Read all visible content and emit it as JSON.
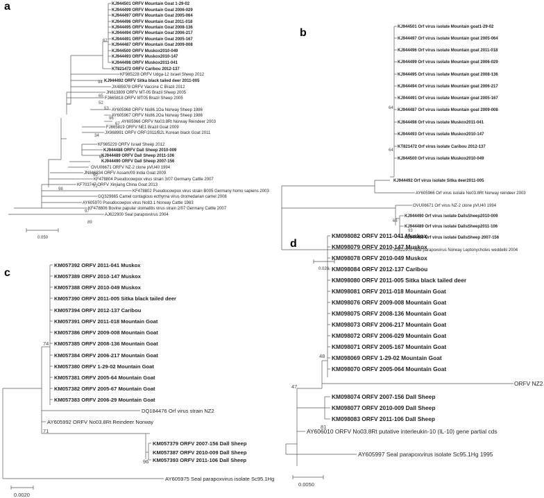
{
  "panels": [
    {
      "letter": "a",
      "scale_label": "0.050",
      "bootstrap": [
        "62",
        "94",
        "65",
        "52",
        "53",
        "96",
        "67",
        "34",
        "67",
        "50",
        "72",
        "98",
        "97",
        "89"
      ],
      "leaves": [
        {
          "text": "KJ944501 ORFV Mountain Goat 1-29-02",
          "bold": true
        },
        {
          "text": "KJ944499 ORFV Mountain Goat 2006-029",
          "bold": true
        },
        {
          "text": "KJ944497 ORFV Mountain Goat 2005-064",
          "bold": true
        },
        {
          "text": "KJ944496 ORFV Mountain Goat 2011-018",
          "bold": true
        },
        {
          "text": "KJ944495 ORFV Mountain Goat 2008-136",
          "bold": true
        },
        {
          "text": "KJ944494 ORFV Mountain Goat 2006-217",
          "bold": true
        },
        {
          "text": "KJ944491 ORFV Mountain Goat 2005-167",
          "bold": true
        },
        {
          "text": "KJ944487 ORFV Mountain Goat 2009-008",
          "bold": true
        },
        {
          "text": "KJ944500 ORFV Muskox2010-049",
          "bold": true
        },
        {
          "text": "KJ944493 ORFV Muskox2010-147",
          "bold": true
        },
        {
          "text": "KJ944498 ORFV Muskox2011-041",
          "bold": true
        },
        {
          "text": "KT821472 ORFV Caribou 2012-137",
          "bold": true
        },
        {
          "text": "KF985228 ORFV Udga-12 Israel Sheep 2012",
          "bold": false
        },
        {
          "text": "KJ944492 ORFV Sitka black tailed deer 2011-005",
          "bold": true
        },
        {
          "text": "JX485978 ORFV Vaccine C Brazil 2012",
          "bold": false
        },
        {
          "text": "JN613809 ORFV MT-05 Brazil Sheep 2005",
          "bold": false
        },
        {
          "text": "FJ665818 ORFV MT05 Brazil Sheep 2005",
          "bold": false
        },
        {
          "text": "AY605968 ORFV No86.1Oa Norway Sheep 1986",
          "bold": false
        },
        {
          "text": "AY605967 ORFV No86.2Oa Norway Sheep 1986",
          "bold": false
        },
        {
          "text": "AY605966 ORFV No03.8Rt Norway Reindeer 2003",
          "bold": false
        },
        {
          "text": "FJ665819 ORFV NE1 Brazil Goat 2009",
          "bold": false
        },
        {
          "text": "JX968991 ORFV ORF/2011/B2L Korean black Goat 2011",
          "bold": false
        },
        {
          "text": "KF985229 ORFV Israel Sheep 2012",
          "bold": false
        },
        {
          "text": "KJ944488 ORFV Dall Sheep 2010-009",
          "bold": true
        },
        {
          "text": "KJ944489 ORFV Dall Sheep 2011-106",
          "bold": true
        },
        {
          "text": "KJ944490 ORFV Dall Sheep  2007-156",
          "bold": true
        },
        {
          "text": "OVU06671 ORFV NZ-2 clone pVU40 1994",
          "bold": false
        },
        {
          "text": "JN846834 ORFV Assam/09 India Goat 2009",
          "bold": false
        },
        {
          "text": "KF703747 ORFV Xinjiang China Goat 2013",
          "bold": false
        },
        {
          "text": "KF478804 Pseudocowpox virus strain 3/07 Germany Cattle 2007",
          "bold": false
        },
        {
          "text": "GQ329665 Camel contagious ecthyma virus dromedarian camel 2008",
          "bold": false
        },
        {
          "text": "KF478802 Pseudocowpox virus strain B005 Germany homo sapiens 2003",
          "bold": false
        },
        {
          "text": "AY605970 Pseudocowpox virus  No83.1 Norway Cattle 1983",
          "bold": false
        },
        {
          "text": "KF478806 Bovine papular stomatitis virus strain 2/07 Germany Cattle 2007",
          "bold": false
        },
        {
          "text": "AJ622900 Seal parapoxvirus 2004",
          "bold": false
        }
      ]
    },
    {
      "letter": "b",
      "scale_label": "0.020",
      "bootstrap": [
        "64",
        "64",
        "66",
        "93"
      ],
      "leaves": [
        {
          "text": "KJ944501 Orf virus isolate Mountain goat1-29-02",
          "bold": true
        },
        {
          "text": "KJ944497 Orf virus isolate Mountain goat 2005-064",
          "bold": true
        },
        {
          "text": "KJ944496 Orf virus isolate Mountain goat 2011-018",
          "bold": true
        },
        {
          "text": "KJ944499 Orf virus isolate Mountain goat 2006-029",
          "bold": true
        },
        {
          "text": "KJ944495 Orf virus isolate Mountain goat 2008-136",
          "bold": true
        },
        {
          "text": "KJ944494 Orf virus isolate Mountain goat 2006-217",
          "bold": true
        },
        {
          "text": "KJ944491 Orf virus isolate Mountain goat 2005-167",
          "bold": true
        },
        {
          "text": "KJ944487 Orf virus isolate Mountain goat 2009-008",
          "bold": true
        },
        {
          "text": "KJ944498 Orf virus isolate Muskox2011-041",
          "bold": true
        },
        {
          "text": "KJ944493 Orf virus isolate Muskox2010-147",
          "bold": true
        },
        {
          "text": "KT821472 Orf virus isolate Caribou 2012-137",
          "bold": true
        },
        {
          "text": "KJ944500 Orf virus isolate Muskox2010-049",
          "bold": true
        },
        {
          "text": "KJ944492 Orf virus isolate Sitka deer2011-005",
          "bold": true
        },
        {
          "text": "AY605966 Orf virus isolate No03.8Rt Norway reindeer 2003",
          "bold": false
        },
        {
          "text": "OVU06671 Orf virus NZ-2 clone pVU40 1994",
          "bold": false
        },
        {
          "text": "KJ944490 Orf virus isolate DallsSheep2010-009",
          "bold": true
        },
        {
          "text": "KJ944489 Orf virus isolate DallsSheep2011-106",
          "bold": true
        },
        {
          "text": "KJ944480 Orf virus isolate DallsSheep 2007-156",
          "bold": true
        },
        {
          "text": "AJ622900 Seal parapoxvirus Norway Leptonychotes weddellii 2004",
          "bold": false
        }
      ]
    },
    {
      "letter": "c",
      "scale_label": "0.0020",
      "bootstrap": [
        "74",
        "71",
        "96"
      ],
      "leaves": [
        {
          "text": "KM057392 ORFV  2011-041  Muskox",
          "bold": true
        },
        {
          "text": "KM057389 ORFV  2010-147  Muskox",
          "bold": true
        },
        {
          "text": "KM057388 ORFV  2010-049  Muskox",
          "bold": true
        },
        {
          "text": "KM057390 ORFV  2011-005  Sitka black tailed deer",
          "bold": true
        },
        {
          "text": "KM057394 ORFV  2012-137  Caribou",
          "bold": true
        },
        {
          "text": "KM057391 ORFV  2011-018  Mountain Goat",
          "bold": true
        },
        {
          "text": "KM057386 ORFV  2009-008  Mountain Goat",
          "bold": true
        },
        {
          "text": "KM057385 ORFV  2008-136  Mountain Goat",
          "bold": true
        },
        {
          "text": "KM057384 ORFV  2006-217  Mountain Goat",
          "bold": true
        },
        {
          "text": "KM057380 ORFV  1-29-02  Mountain Goat",
          "bold": true
        },
        {
          "text": "KM057381 ORFV  2005-64  Mountain Goat",
          "bold": true
        },
        {
          "text": "KM057382 ORFV  2005-67  Mountain Goat",
          "bold": true
        },
        {
          "text": "KM057383 ORFV  2006-29  Mountain Goat",
          "bold": true
        },
        {
          "text": "DQ184476  Orf virus strain NZ2",
          "bold": false
        },
        {
          "text": "AY605992  ORFV  No03.8Rt  Reindeer Norway",
          "bold": false
        },
        {
          "text": "KM057379  ORFV  2007-156  Dall Sheep",
          "bold": true
        },
        {
          "text": "KM057387  ORFV  2010-009  Dall Sheep",
          "bold": true
        },
        {
          "text": "KM057393  ORFV  2011-106  Dall Sheep",
          "bold": true
        },
        {
          "text": "AY605975  Seal parapoxvirus isolate Sc95.1Hg",
          "bold": false
        }
      ]
    },
    {
      "letter": "d",
      "scale_label": "0.0050",
      "bootstrap": [
        "48",
        "47",
        "81"
      ],
      "leaves": [
        {
          "text": "KM098082 ORFV  2011-041 Muskox",
          "bold": true
        },
        {
          "text": "KM098079 ORFV  2010-147 Muskox",
          "bold": true
        },
        {
          "text": "KM098078 ORFV  2010-049 Muskox",
          "bold": true
        },
        {
          "text": "KM098084 ORFV  2012-137 Caribou",
          "bold": true
        },
        {
          "text": "KM098080 ORFV  2011-005 Sitka black tailed deer",
          "bold": true
        },
        {
          "text": "KM098081 ORFV  2011-018 Mountain Goat",
          "bold": true
        },
        {
          "text": "KM098076 ORFV  2009-008 Mountain Goat",
          "bold": true
        },
        {
          "text": "KM098075 ORFV  2008-136 Mountain Goat",
          "bold": true
        },
        {
          "text": "KM098073 ORFV  2006-217 Mountain Goat",
          "bold": true
        },
        {
          "text": "KM098072 ORFV  2006-029 Mountain Goat",
          "bold": true
        },
        {
          "text": "KM098071 ORFV  2005-167 Mountain Goat",
          "bold": true
        },
        {
          "text": "KM098069 ORFV  1-29-02 Mountain Goat",
          "bold": true
        },
        {
          "text": "KM098070 ORFV  2005-064 Mountain Goat",
          "bold": true
        },
        {
          "text": "ORFV  NZ2",
          "bold": false
        },
        {
          "text": "KM098074 ORFV  2007-156 Dall Sheep",
          "bold": true
        },
        {
          "text": "KM098077 ORFV  2010-009 Dall Sheep",
          "bold": true
        },
        {
          "text": "KM098083 ORFV  2011-106 Dall Sheep",
          "bold": true
        },
        {
          "text": "AY606010  ORFV  No03.8Rt putative interleukin-10 (IL-10)  gene partial cds",
          "bold": false
        },
        {
          "text": "AY605997  Seal parapoxvirus isolate Sc95.1Hg 1995",
          "bold": false
        }
      ]
    }
  ]
}
